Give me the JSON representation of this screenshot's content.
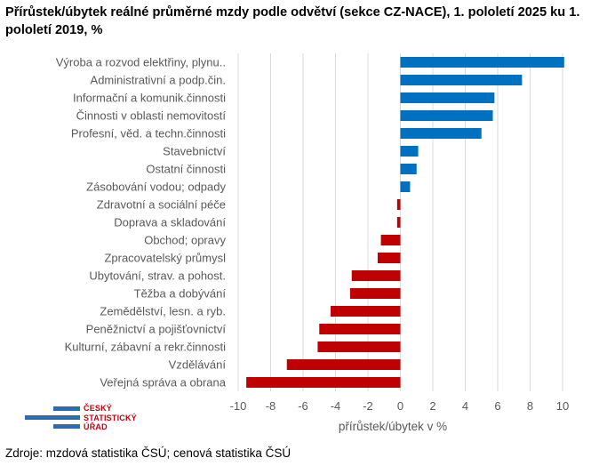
{
  "title": "Přírůstek/úbytek reálné průměrné mzdy podle odvětví (sekce CZ-NACE), 1. pololetí 2025 ku 1. pololetí 2019, %",
  "source": "Zdroje: mzdová statistika ČSÚ; cenová statistika ČSÚ",
  "logo": {
    "line1": "ČESKÝ",
    "line2": "STATISTICKÝ",
    "line3": "ÚŘAD"
  },
  "colors": {
    "positive": "#0070c0",
    "negative": "#c00000",
    "grid": "#d9d9d9"
  },
  "chart_data": {
    "type": "bar",
    "orientation": "horizontal",
    "categories": [
      "Výroba a rozvod elektřiny, plynu..",
      "Administrativní a podp.čin.",
      "Informační a komunik.činnosti",
      "Činnosti v oblasti nemovitostí",
      "Profesní, věd. a techn.činnosti",
      "Stavebnictví",
      "Ostatní činnosti",
      "Zásobování vodou; odpady",
      "Zdravotní a sociální péče",
      "Doprava a skladování",
      "Obchod; opravy",
      "Zpracovatelský průmysl",
      "Ubytování, strav. a pohost.",
      "Těžba a dobývání",
      "Zemědělství, lesn. a ryb.",
      "Peněžnictví a pojišťovnictví",
      "Kulturní, zábavní a rekr.činnosti",
      "Vzdělávání",
      "Veřejná správa a obrana"
    ],
    "values": [
      10.1,
      7.5,
      5.8,
      5.7,
      5.0,
      1.1,
      1.0,
      0.6,
      -0.2,
      -0.2,
      -1.2,
      -1.4,
      -3.0,
      -3.1,
      -4.3,
      -5.0,
      -5.1,
      -7.0,
      -9.5
    ],
    "xlabel": "přírůstek/úbytek v %",
    "xlim": [
      -10,
      10
    ],
    "xticks": [
      -10,
      -8,
      -6,
      -4,
      -2,
      0,
      2,
      4,
      6,
      8,
      10
    ],
    "xtick_labels": [
      "-10",
      "-8",
      "-6",
      "-4",
      "-2",
      "0",
      "2",
      "4",
      "6",
      "8",
      "10"
    ],
    "grid": true
  }
}
